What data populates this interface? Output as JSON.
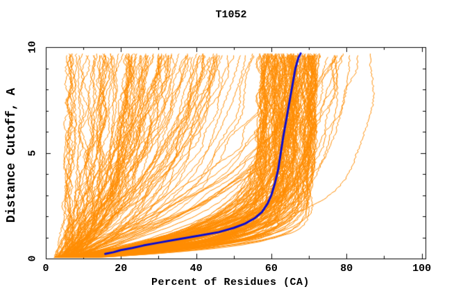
{
  "chart_data": {
    "type": "line",
    "title": "T1052",
    "xlabel": "Percent of Residues (CA)",
    "ylabel": "Distance Cutoff, A",
    "xlim": [
      0,
      101
    ],
    "ylim": [
      0,
      10
    ],
    "xticks": [
      0,
      20,
      40,
      60,
      80,
      100
    ],
    "xticks_minor": [
      10,
      30,
      50,
      70,
      90
    ],
    "yticks": [
      0,
      5,
      10
    ],
    "yticks_minor": [
      1,
      2,
      3,
      4,
      6,
      7,
      8,
      9
    ],
    "grid": false,
    "legend": "none",
    "axis_color": "#000000",
    "background_color": "#ffffff",
    "series": [
      {
        "name": "model-ensemble",
        "color": "#FF8C00",
        "line_width": 1,
        "style": "procedural-ensemble",
        "count": 260,
        "seed": 1052,
        "d_max": 9.65,
        "start_percent_range": [
          2,
          8
        ],
        "clusters": [
          {
            "weight": 0.55,
            "pmax_range": [
              57,
              72
            ],
            "tau_range": [
              0.5,
              1.6
            ]
          },
          {
            "weight": 0.25,
            "pmax_range": [
              20,
              60
            ],
            "tau_range": [
              3.0,
              9.0
            ]
          },
          {
            "weight": 0.12,
            "pmax_range": [
              6,
              26
            ],
            "tau_range": [
              1.2,
              4.0
            ]
          },
          {
            "weight": 0.08,
            "pmax_range": [
              70,
              90
            ],
            "tau_range": [
              1.5,
              5.0
            ]
          }
        ]
      },
      {
        "name": "highlighted-model",
        "color": "#0B0BD0",
        "line_width": 3,
        "points": [
          [
            15.8,
            0.22
          ],
          [
            18,
            0.3
          ],
          [
            20,
            0.4
          ],
          [
            23,
            0.5
          ],
          [
            26,
            0.62
          ],
          [
            30,
            0.75
          ],
          [
            34,
            0.88
          ],
          [
            38,
            1.0
          ],
          [
            42,
            1.12
          ],
          [
            46,
            1.25
          ],
          [
            50,
            1.45
          ],
          [
            53,
            1.65
          ],
          [
            55.5,
            1.9
          ],
          [
            57.5,
            2.2
          ],
          [
            59,
            2.6
          ],
          [
            60,
            3.0
          ],
          [
            61,
            3.6
          ],
          [
            61.8,
            4.2
          ],
          [
            62.5,
            5.0
          ],
          [
            63.2,
            5.8
          ],
          [
            64,
            6.6
          ],
          [
            64.8,
            7.4
          ],
          [
            65.6,
            8.2
          ],
          [
            66.4,
            9.0
          ],
          [
            67.2,
            9.5
          ],
          [
            67.8,
            9.7
          ]
        ]
      }
    ]
  }
}
